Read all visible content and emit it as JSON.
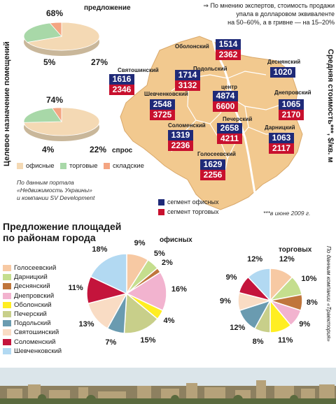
{
  "header": {
    "arrow": "⇒",
    "line1": "По мнению экспертов, стоимость продажи",
    "line2": "упала в долларовом эквиваленте",
    "line3": "на 50–60%, а в гривне — на 15–20%"
  },
  "left_axis_label": "Целевое назначение помещений",
  "right_axis_label": "Средняя стоимость***, $/кв. м",
  "supply_caption": "предложение",
  "demand_caption": "спрос",
  "purpose_pies": {
    "supply": {
      "values": [
        68,
        27,
        5
      ],
      "labels": [
        "68%",
        "27%",
        "5%"
      ]
    },
    "demand": {
      "values": [
        74,
        22,
        4
      ],
      "labels": [
        "74%",
        "22%",
        "4%"
      ]
    }
  },
  "purpose_legend": [
    {
      "label": "офисные",
      "color": "#f4d9b4"
    },
    {
      "label": "торговые",
      "color": "#a8d8a8"
    },
    {
      "label": "складские",
      "color": "#f4a582"
    }
  ],
  "source_note": {
    "line1": "По данным портала",
    "line2": "«Недвижимость Украины»",
    "line3": "и компании SV Development"
  },
  "map": {
    "fill": "#f2c98f",
    "districts": [
      {
        "name": "Оболонский",
        "office": "1514",
        "retail": "2362"
      },
      {
        "name": "Деснянский",
        "office": "1020",
        "retail": ""
      },
      {
        "name": "Святошинский",
        "office": "1616",
        "retail": "2346"
      },
      {
        "name": "Подольский",
        "office": "1714",
        "retail": "3132"
      },
      {
        "name": "центр",
        "office": "4874",
        "retail": "6600"
      },
      {
        "name": "Шевченковский",
        "office": "2548",
        "retail": "3725"
      },
      {
        "name": "Днепровский",
        "office": "1065",
        "retail": "2170"
      },
      {
        "name": "Соломенский",
        "office": "1319",
        "retail": "2236"
      },
      {
        "name": "Печерский",
        "office": "2658",
        "retail": "4211"
      },
      {
        "name": "Дарницкий",
        "office": "1063",
        "retail": "2117"
      },
      {
        "name": "Голосеевский",
        "office": "1629",
        "retail": "2256"
      }
    ],
    "legend": [
      {
        "label": "сегмент офисных",
        "color": "#1f2a78"
      },
      {
        "label": "сегмент торговых",
        "color": "#c8102e"
      }
    ],
    "footnote": "***в июне 2009 г."
  },
  "section_title_line1": "Предложение площадей",
  "section_title_line2": "по районам города",
  "office_caption": "офисных",
  "retail_caption": "торговых",
  "right_source": "По данным компании «Траектория»",
  "chart_data": [
    {
      "type": "pie",
      "title": "предложение",
      "categories": [
        "офисные",
        "торговые",
        "складские"
      ],
      "values": [
        68,
        27,
        5
      ]
    },
    {
      "type": "pie",
      "title": "спрос",
      "categories": [
        "офисные",
        "торговые",
        "складские"
      ],
      "values": [
        74,
        22,
        4
      ]
    },
    {
      "type": "pie",
      "title": "офисных",
      "categories": [
        "Голосеевский",
        "Дарницкий",
        "Деснянский",
        "Днепровский",
        "Оболонский",
        "Печерский",
        "Подольский",
        "Святошинский",
        "Соломенский",
        "Шевченковский"
      ],
      "values": [
        9,
        5,
        2,
        16,
        4,
        15,
        7,
        13,
        11,
        18
      ]
    },
    {
      "type": "pie",
      "title": "торговых",
      "categories": [
        "Голосеевский",
        "Дарницкий",
        "Деснянский",
        "Днепровский",
        "Оболонский",
        "Печерский",
        "Подольский",
        "Святошинский",
        "Соломенский",
        "Шевченковский"
      ],
      "values": [
        12,
        10,
        8,
        9,
        11,
        8,
        12,
        9,
        9,
        12
      ]
    }
  ],
  "district_legend": [
    {
      "label": "Голосеевский",
      "color": "#f7c9a3"
    },
    {
      "label": "Дарницкий",
      "color": "#c5de8e"
    },
    {
      "label": "Деснянский",
      "color": "#c0763c"
    },
    {
      "label": "Днепровский",
      "color": "#f2b3cf"
    },
    {
      "label": "Оболонский",
      "color": "#ffee22"
    },
    {
      "label": "Печерский",
      "color": "#c8cf8a"
    },
    {
      "label": "Подольский",
      "color": "#6a9bb0"
    },
    {
      "label": "Святошинский",
      "color": "#f9dcc4"
    },
    {
      "label": "Соломенский",
      "color": "#c4143c"
    },
    {
      "label": "Шевченковский",
      "color": "#b2d9f2"
    }
  ],
  "office_labels": [
    "9%",
    "5%",
    "2%",
    "16%",
    "4%",
    "15%",
    "7%",
    "13%",
    "11%",
    "18%"
  ],
  "retail_labels": [
    "12%",
    "10%",
    "8%",
    "9%",
    "11%",
    "8%",
    "12%",
    "9%",
    "9%",
    "12%"
  ]
}
